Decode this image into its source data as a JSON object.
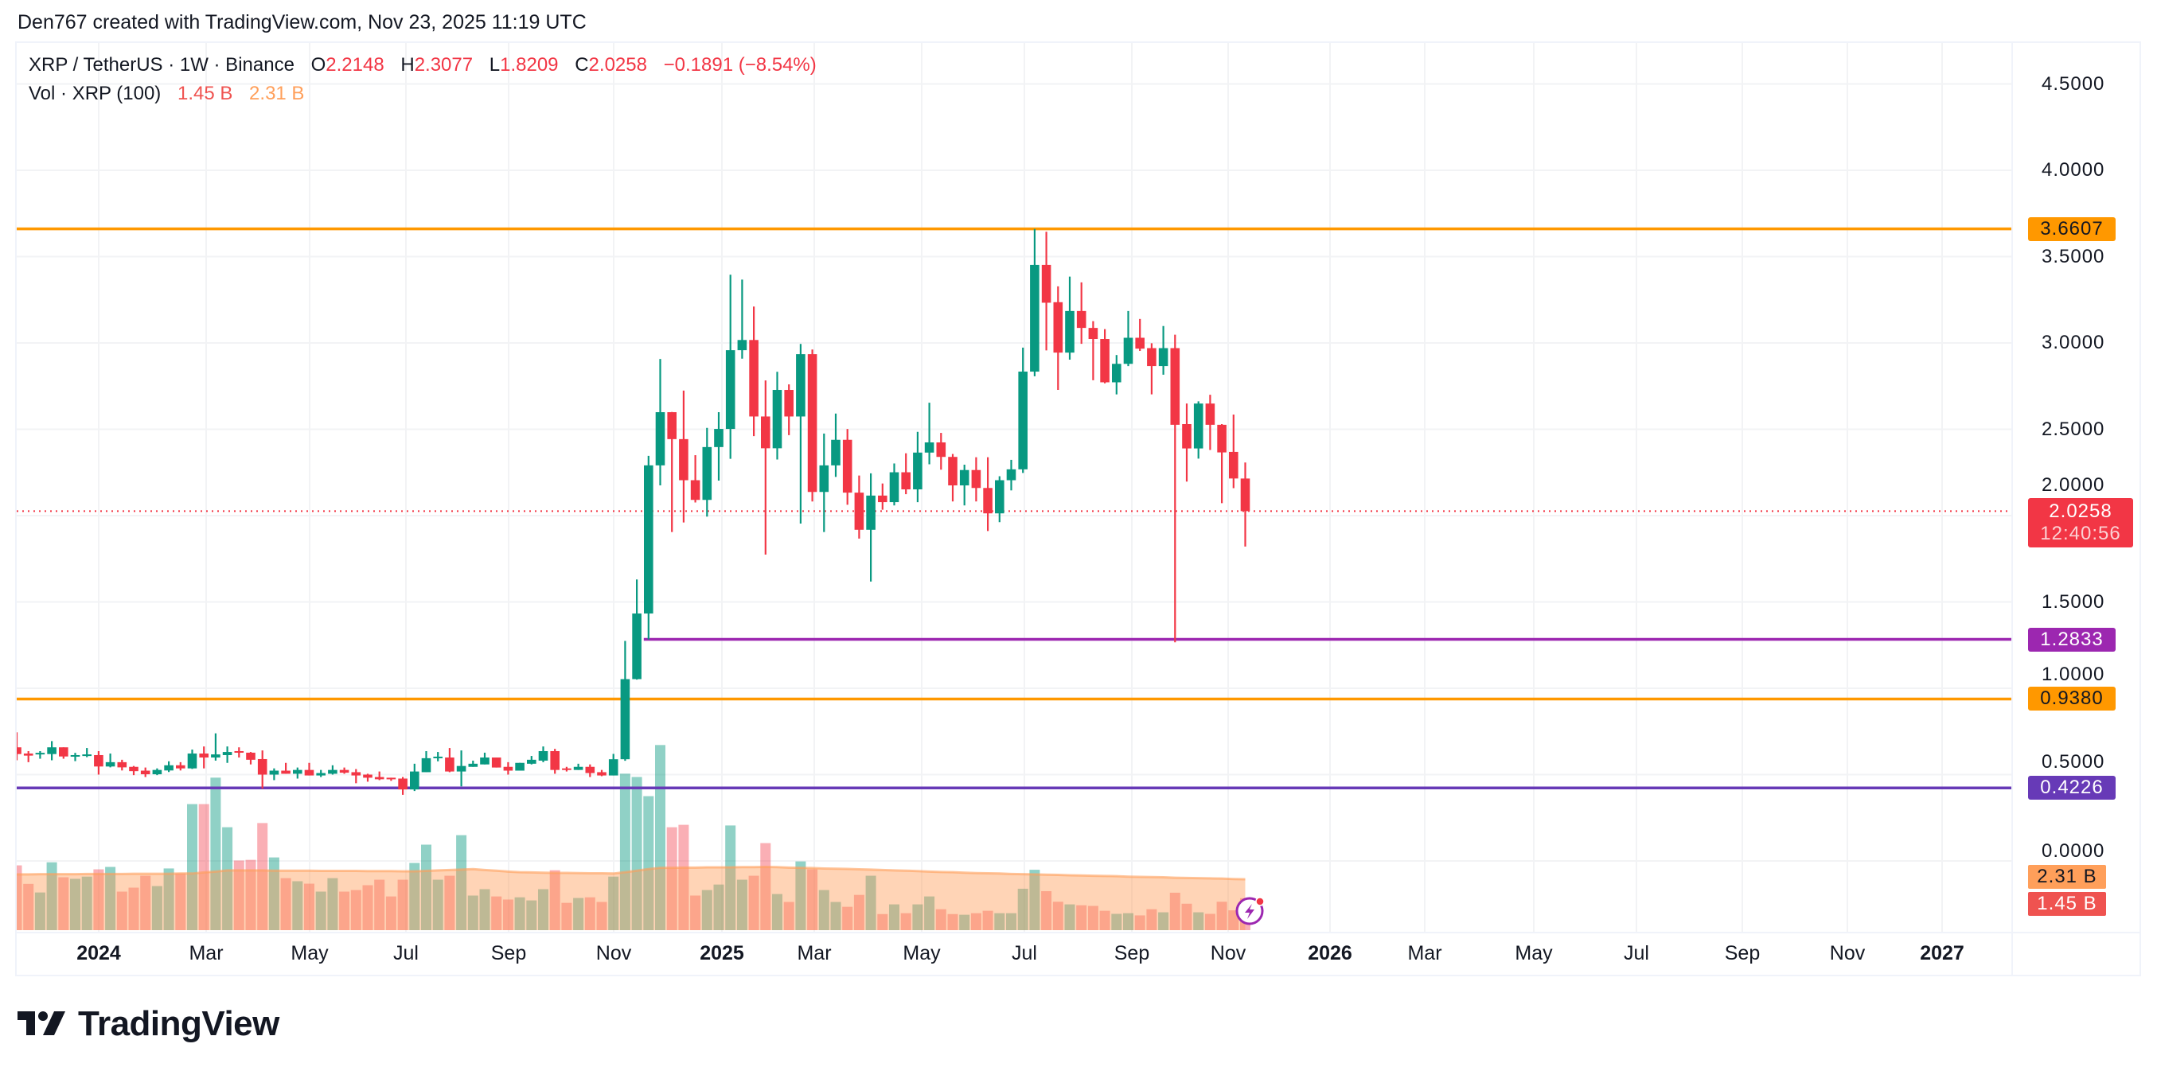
{
  "header": {
    "text": "Den767 created with TradingView.com, Nov 23, 2025 11:19 UTC"
  },
  "legend": {
    "symbol": "XRP / TetherUS · 1W · Binance",
    "o_label": "O",
    "o_value": "2.2148",
    "h_label": "H",
    "h_value": "2.3077",
    "l_label": "L",
    "l_value": "1.8209",
    "c_label": "C",
    "c_value": "2.0258",
    "change": "−0.1891 (−8.54%)",
    "vol_label": "Vol · XRP (100)",
    "vol_value": "1.45 B",
    "vol_ma_value": "2.31 B"
  },
  "price_axis": {
    "ticks": [
      "4.5000",
      "4.0000",
      "3.5000",
      "3.0000",
      "2.5000",
      "2.0000",
      "1.5000",
      "1.0000",
      "0.5000",
      "0.0000"
    ],
    "badges": {
      "resistance_high": "3.6607",
      "current_price": "2.0258",
      "countdown": "12:40:56",
      "support_mid": "1.2833",
      "support_low": "0.9380",
      "support_base": "0.4226",
      "vol_ma": "2.31 B",
      "vol": "1.45 B"
    }
  },
  "time_axis": {
    "ticks": [
      "2024",
      "Mar",
      "May",
      "Jul",
      "Sep",
      "Nov",
      "2025",
      "Mar",
      "May",
      "Jul",
      "Sep",
      "Nov",
      "2026",
      "Mar",
      "May",
      "Jul",
      "Sep",
      "Nov",
      "2027"
    ]
  },
  "logo": {
    "text": "TradingView"
  },
  "colors": {
    "up": "#089981",
    "down": "#f23645",
    "orange_line": "#ff9800",
    "purple_line": "#9c27b0",
    "deep_purple_line": "#673ab7",
    "vol_ma": "#ff9f5a"
  },
  "chart_data": {
    "type": "candlestick",
    "symbol": "XRP / TetherUS",
    "interval": "1W",
    "x_start": "2023-11-13",
    "ylim": [
      0,
      4.75
    ],
    "grid": true,
    "horizontal_lines": [
      {
        "value": 3.6607,
        "color": "#ff9800"
      },
      {
        "value": 1.2833,
        "color": "#9c27b0",
        "from": "2024-12-02"
      },
      {
        "value": 0.938,
        "color": "#ff9800"
      },
      {
        "value": 0.4226,
        "color": "#673ab7"
      }
    ],
    "last_price": 2.0258,
    "ohlcv_fields": [
      "open",
      "high",
      "low",
      "close",
      "volume_B"
    ],
    "candles": [
      [
        0.658,
        0.745,
        0.583,
        0.619,
        2.94
      ],
      [
        0.622,
        0.636,
        0.572,
        0.61,
        2.1
      ],
      [
        0.617,
        0.636,
        0.592,
        0.626,
        1.71
      ],
      [
        0.619,
        0.694,
        0.583,
        0.658,
        3.08
      ],
      [
        0.658,
        0.658,
        0.592,
        0.605,
        2.4
      ],
      [
        0.604,
        0.626,
        0.578,
        0.613,
        2.33
      ],
      [
        0.608,
        0.654,
        0.601,
        0.617,
        2.43
      ],
      [
        0.613,
        0.636,
        0.5,
        0.547,
        2.76
      ],
      [
        0.547,
        0.622,
        0.542,
        0.572,
        2.87
      ],
      [
        0.572,
        0.586,
        0.524,
        0.542,
        1.75
      ],
      [
        0.545,
        0.55,
        0.497,
        0.52,
        1.93
      ],
      [
        0.523,
        0.541,
        0.486,
        0.502,
        2.47
      ],
      [
        0.502,
        0.536,
        0.497,
        0.527,
        2.0
      ],
      [
        0.524,
        0.577,
        0.515,
        0.554,
        2.8
      ],
      [
        0.554,
        0.572,
        0.524,
        0.536,
        2.58
      ],
      [
        0.536,
        0.645,
        0.533,
        0.622,
        5.72
      ],
      [
        0.622,
        0.663,
        0.536,
        0.599,
        5.72
      ],
      [
        0.599,
        0.739,
        0.581,
        0.617,
        6.92
      ],
      [
        0.613,
        0.663,
        0.568,
        0.631,
        4.67
      ],
      [
        0.636,
        0.658,
        0.599,
        0.627,
        3.16
      ],
      [
        0.627,
        0.631,
        0.559,
        0.586,
        3.19
      ],
      [
        0.59,
        0.64,
        0.419,
        0.5,
        4.86
      ],
      [
        0.5,
        0.536,
        0.468,
        0.523,
        3.3
      ],
      [
        0.523,
        0.568,
        0.505,
        0.505,
        2.36
      ],
      [
        0.505,
        0.541,
        0.477,
        0.527,
        2.22
      ],
      [
        0.527,
        0.568,
        0.495,
        0.495,
        2.11
      ],
      [
        0.495,
        0.527,
        0.486,
        0.509,
        1.75
      ],
      [
        0.505,
        0.554,
        0.5,
        0.527,
        2.36
      ],
      [
        0.527,
        0.541,
        0.505,
        0.511,
        1.75
      ],
      [
        0.514,
        0.532,
        0.45,
        0.495,
        1.82
      ],
      [
        0.5,
        0.505,
        0.459,
        0.482,
        2.04
      ],
      [
        0.486,
        0.518,
        0.468,
        0.473,
        2.29
      ],
      [
        0.482,
        0.482,
        0.464,
        0.473,
        1.53
      ],
      [
        0.477,
        0.486,
        0.383,
        0.414,
        2.29
      ],
      [
        0.414,
        0.563,
        0.405,
        0.518,
        3.05
      ],
      [
        0.514,
        0.636,
        0.514,
        0.595,
        3.88
      ],
      [
        0.595,
        0.631,
        0.577,
        0.604,
        2.29
      ],
      [
        0.599,
        0.654,
        0.514,
        0.518,
        2.47
      ],
      [
        0.518,
        0.64,
        0.432,
        0.55,
        4.31
      ],
      [
        0.545,
        0.581,
        0.545,
        0.563,
        1.57
      ],
      [
        0.559,
        0.627,
        0.559,
        0.599,
        1.86
      ],
      [
        0.599,
        0.599,
        0.541,
        0.541,
        1.53
      ],
      [
        0.545,
        0.572,
        0.5,
        0.523,
        1.39
      ],
      [
        0.523,
        0.568,
        0.523,
        0.568,
        1.49
      ],
      [
        0.563,
        0.608,
        0.559,
        0.586,
        1.35
      ],
      [
        0.581,
        0.663,
        0.572,
        0.636,
        1.86
      ],
      [
        0.636,
        0.649,
        0.505,
        0.527,
        2.72
      ],
      [
        0.536,
        0.545,
        0.518,
        0.527,
        1.24
      ],
      [
        0.527,
        0.563,
        0.527,
        0.545,
        1.46
      ],
      [
        0.545,
        0.559,
        0.486,
        0.509,
        1.49
      ],
      [
        0.514,
        0.527,
        0.491,
        0.495,
        1.28
      ],
      [
        0.495,
        0.62,
        0.495,
        0.589,
        2.43
      ],
      [
        0.589,
        1.274,
        0.58,
        1.053,
        7.1
      ],
      [
        1.053,
        1.63,
        1.05,
        1.433,
        6.95
      ],
      [
        1.433,
        2.346,
        1.283,
        2.291,
        6.08
      ],
      [
        2.291,
        2.907,
        2.175,
        2.599,
        8.4
      ],
      [
        2.599,
        2.6,
        1.905,
        2.443,
        4.67
      ],
      [
        2.443,
        2.724,
        1.96,
        2.205,
        4.78
      ],
      [
        2.205,
        2.35,
        2.076,
        2.091,
        1.57
      ],
      [
        2.091,
        2.508,
        1.994,
        2.397,
        1.82
      ],
      [
        2.397,
        2.599,
        2.203,
        2.502,
        2.07
      ],
      [
        2.502,
        3.395,
        2.329,
        2.958,
        4.75
      ],
      [
        2.958,
        3.367,
        2.909,
        3.017,
        2.29
      ],
      [
        3.017,
        3.211,
        2.46,
        2.574,
        2.47
      ],
      [
        2.574,
        2.783,
        1.774,
        2.39,
        3.95
      ],
      [
        2.39,
        2.833,
        2.325,
        2.728,
        1.64
      ],
      [
        2.728,
        2.76,
        2.466,
        2.574,
        1.28
      ],
      [
        2.574,
        2.994,
        1.954,
        2.935,
        3.12
      ],
      [
        2.935,
        2.962,
        2.082,
        2.137,
        2.76
      ],
      [
        2.137,
        2.475,
        1.905,
        2.291,
        1.82
      ],
      [
        2.291,
        2.591,
        2.224,
        2.439,
        1.28
      ],
      [
        2.439,
        2.502,
        2.063,
        2.133,
        1.06
      ],
      [
        2.133,
        2.232,
        1.867,
        1.918,
        1.6
      ],
      [
        1.918,
        2.245,
        1.618,
        2.116,
        2.47
      ],
      [
        2.116,
        2.186,
        2.034,
        2.078,
        0.73
      ],
      [
        2.078,
        2.302,
        2.059,
        2.251,
        1.17
      ],
      [
        2.251,
        2.361,
        2.124,
        2.152,
        0.77
      ],
      [
        2.152,
        2.485,
        2.078,
        2.365,
        1.17
      ],
      [
        2.365,
        2.654,
        2.297,
        2.424,
        1.53
      ],
      [
        2.424,
        2.479,
        2.266,
        2.34,
        0.95
      ],
      [
        2.34,
        2.357,
        2.082,
        2.175,
        0.73
      ],
      [
        2.175,
        2.295,
        2.059,
        2.264,
        0.7
      ],
      [
        2.264,
        2.338,
        2.082,
        2.16,
        0.77
      ],
      [
        2.16,
        2.338,
        1.911,
        2.013,
        0.88
      ],
      [
        2.013,
        2.228,
        1.962,
        2.205,
        0.77
      ],
      [
        2.205,
        2.323,
        2.146,
        2.268,
        0.77
      ],
      [
        2.268,
        2.973,
        2.247,
        2.834,
        1.88
      ],
      [
        2.834,
        3.66,
        2.807,
        3.452,
        2.74
      ],
      [
        3.452,
        3.644,
        2.957,
        3.233,
        1.77
      ],
      [
        3.236,
        3.328,
        2.728,
        2.944,
        1.29
      ],
      [
        2.944,
        3.384,
        2.903,
        3.185,
        1.17
      ],
      [
        3.185,
        3.351,
        2.995,
        3.087,
        1.13
      ],
      [
        3.087,
        3.126,
        2.784,
        3.023,
        1.1
      ],
      [
        3.023,
        3.08,
        2.766,
        2.772,
        0.88
      ],
      [
        2.772,
        2.93,
        2.702,
        2.879,
        0.74
      ],
      [
        2.879,
        3.185,
        2.866,
        3.03,
        0.77
      ],
      [
        3.03,
        3.139,
        2.954,
        2.967,
        0.67
      ],
      [
        2.97,
        2.998,
        2.702,
        2.866,
        0.95
      ],
      [
        2.866,
        3.098,
        2.816,
        2.97,
        0.81
      ],
      [
        2.97,
        3.048,
        1.266,
        2.526,
        1.7
      ],
      [
        2.53,
        2.649,
        2.197,
        2.389,
        1.2
      ],
      [
        2.389,
        2.662,
        2.33,
        2.649,
        0.81
      ],
      [
        2.649,
        2.7,
        2.38,
        2.526,
        0.74
      ],
      [
        2.526,
        2.53,
        2.072,
        2.366,
        1.29
      ],
      [
        2.369,
        2.585,
        2.159,
        2.215,
        0.9
      ],
      [
        2.2148,
        2.3077,
        1.8209,
        2.0258,
        1.45
      ]
    ],
    "volume_ma_100_B": [
      2.53,
      2.53,
      2.54,
      2.54,
      2.54,
      2.54,
      2.55,
      2.55,
      2.55,
      2.55,
      2.56,
      2.56,
      2.56,
      2.56,
      2.57,
      2.57,
      2.62,
      2.66,
      2.71,
      2.71,
      2.71,
      2.71,
      2.7,
      2.7,
      2.7,
      2.7,
      2.69,
      2.69,
      2.69,
      2.69,
      2.68,
      2.68,
      2.68,
      2.67,
      2.67,
      2.69,
      2.71,
      2.73,
      2.75,
      2.77,
      2.73,
      2.7,
      2.66,
      2.63,
      2.62,
      2.61,
      2.6,
      2.6,
      2.59,
      2.58,
      2.58,
      2.57,
      2.63,
      2.7,
      2.77,
      2.83,
      2.83,
      2.84,
      2.84,
      2.85,
      2.85,
      2.85,
      2.86,
      2.86,
      2.87,
      2.86,
      2.84,
      2.83,
      2.82,
      2.8,
      2.79,
      2.78,
      2.76,
      2.75,
      2.73,
      2.71,
      2.7,
      2.68,
      2.66,
      2.64,
      2.63,
      2.61,
      2.59,
      2.58,
      2.57,
      2.55,
      2.54,
      2.53,
      2.52,
      2.51,
      2.49,
      2.48,
      2.47,
      2.46,
      2.45,
      2.43,
      2.42,
      2.41,
      2.4,
      2.38,
      2.37,
      2.36,
      2.35,
      2.34,
      2.32,
      2.31
    ]
  }
}
